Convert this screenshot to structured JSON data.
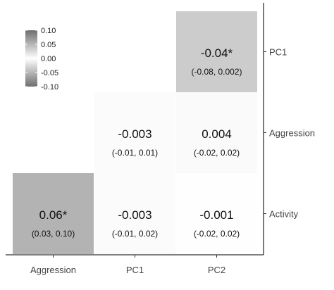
{
  "chart_data": {
    "type": "heatmap",
    "title": "",
    "xlabel": "",
    "ylabel": "",
    "x_categories": [
      "Aggression",
      "PC1",
      "PC2"
    ],
    "y_categories": [
      "PC1",
      "Aggression",
      "Activity"
    ],
    "color_scale": {
      "min": -0.1,
      "max": 0.1,
      "ticks": [
        "0.10",
        "0.05",
        "0.00",
        "-0.05",
        "-0.10"
      ],
      "colors": [
        "#808080",
        "#ffffff",
        "#808080"
      ]
    },
    "cells": [
      {
        "x": "PC2",
        "y": "PC1",
        "value": -0.04,
        "label": "-0.04*",
        "ci": "(-0.08, 0.002)"
      },
      {
        "x": "PC1",
        "y": "Aggression",
        "value": -0.003,
        "label": "-0.003",
        "ci": "(-0.01, 0.01)"
      },
      {
        "x": "PC2",
        "y": "Aggression",
        "value": 0.004,
        "label": "0.004",
        "ci": "(-0.02, 0.02)"
      },
      {
        "x": "Aggression",
        "y": "Activity",
        "value": 0.06,
        "label": "0.06*",
        "ci": "(0.03, 0.10)"
      },
      {
        "x": "PC1",
        "y": "Activity",
        "value": -0.003,
        "label": "-0.003",
        "ci": "(-0.01, 0.02)"
      },
      {
        "x": "PC2",
        "y": "Activity",
        "value": -0.001,
        "label": "-0.001",
        "ci": "(-0.02, 0.02)"
      }
    ]
  }
}
